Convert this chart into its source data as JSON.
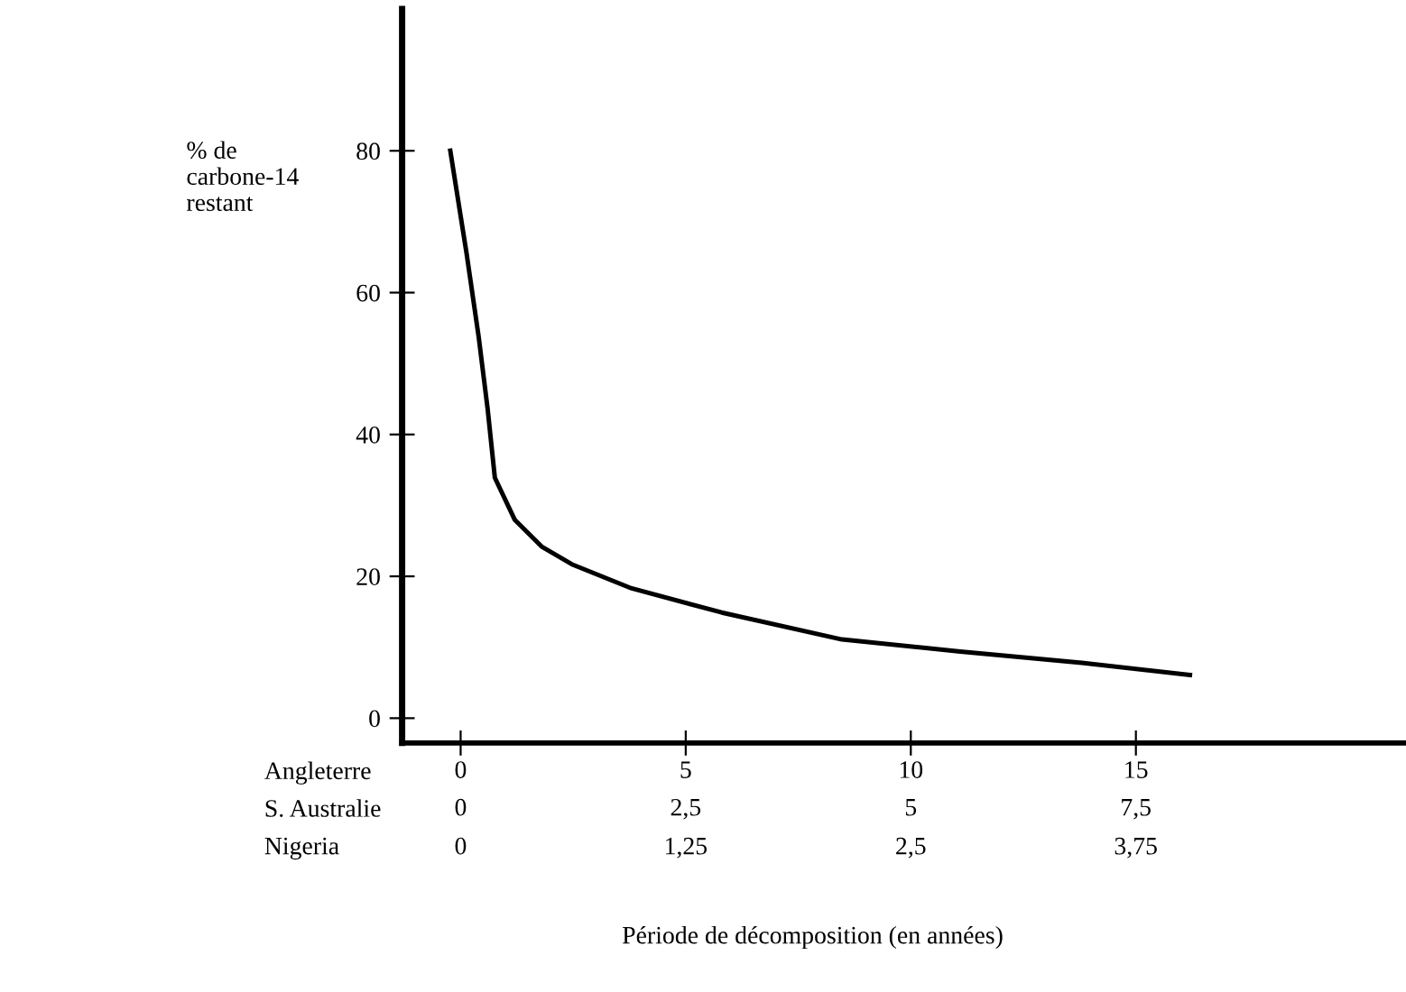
{
  "chart_data": {
    "type": "line",
    "xlabel": "Période de décomposition (en années)",
    "ylabel": "% de\ncarbone-14\nrestant",
    "x": [
      -0.23,
      0.13,
      0.4,
      0.6,
      0.76,
      1.2,
      1.8,
      2.47,
      3.8,
      5.8,
      8.47,
      11.1,
      13.8,
      16.2
    ],
    "series": [
      {
        "color": "#000000",
        "values": [
          80,
          65.6,
          53.8,
          43.6,
          33.9,
          28,
          24.2,
          21.7,
          18.3,
          14.9,
          11.1,
          9.4,
          7.8,
          6.1
        ]
      }
    ],
    "xlim": [
      -1.3,
      21
    ],
    "xticks": [
      0,
      5,
      10,
      15
    ],
    "x2lim": [
      -0.65,
      10.5
    ],
    "x2ticks": [
      0,
      {
        "value": 2.5,
        "label": "2,5"
      },
      5,
      {
        "value": 7.5,
        "label": "7,5"
      }
    ],
    "ylim": [
      -3.5,
      100
    ],
    "yticks": [
      0,
      20,
      40,
      60,
      80
    ],
    "annotations": [
      "Angleterre",
      "S. Australie",
      "Nigeria",
      "0",
      "1,25",
      "2,5",
      "3,75"
    ],
    "grid": false,
    "legend": false,
    "marker": "none",
    "line_style": "solid"
  }
}
